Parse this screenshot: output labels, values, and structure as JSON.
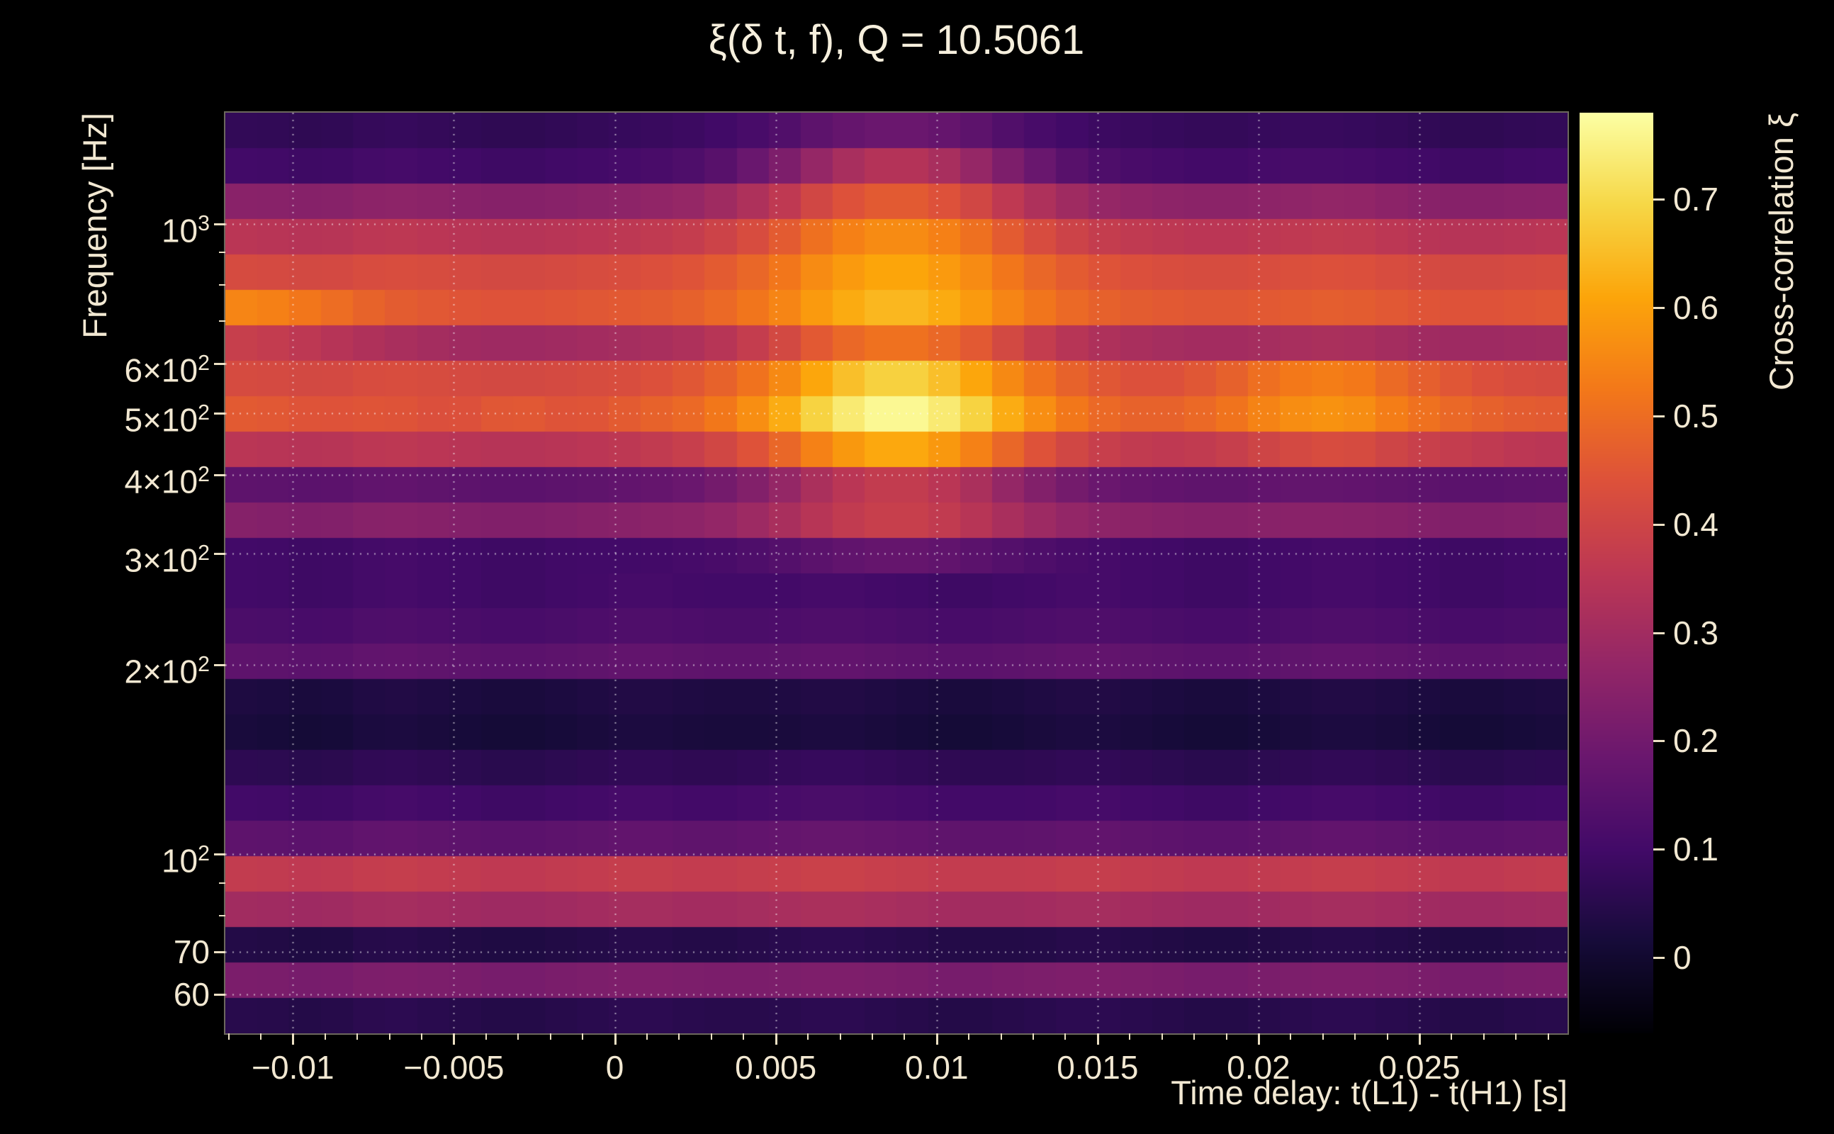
{
  "page": {
    "background": "#000000"
  },
  "style": {
    "text_color": "#f2e8d2",
    "tick_color": "#ece0c4",
    "grid_color": "rgba(255,255,255,0.6)",
    "colormap_low": "#000004",
    "colormap_high": "#fcffa4"
  },
  "chart_data": {
    "type": "heatmap",
    "title": "ξ(δ t, f), Q = 10.5061",
    "xlabel": "Time delay: t(L1) - t(H1) [s]",
    "ylabel": "Frequency [Hz]",
    "colorbar_label": "Cross-correlation ξ",
    "colormap": "inferno",
    "y_scale": "log",
    "grid": "dotted",
    "legend_position": "right-colorbar",
    "x_range": [
      -0.0121,
      0.0296
    ],
    "y_range_hz": [
      52,
      1500
    ],
    "value_range": [
      -0.07,
      0.78
    ],
    "x_ticks": [
      {
        "value": -0.01,
        "label": "−0.01"
      },
      {
        "value": -0.005,
        "label": "−0.005"
      },
      {
        "value": 0,
        "label": "0"
      },
      {
        "value": 0.005,
        "label": "0.005"
      },
      {
        "value": 0.01,
        "label": "0.01"
      },
      {
        "value": 0.015,
        "label": "0.015"
      },
      {
        "value": 0.02,
        "label": "0.02"
      },
      {
        "value": 0.025,
        "label": "0.025"
      }
    ],
    "y_ticks": [
      {
        "value": 1000,
        "base": "10",
        "sup": "3"
      },
      {
        "value": 600,
        "base": "6×10",
        "sup": "2"
      },
      {
        "value": 500,
        "base": "5×10",
        "sup": "2"
      },
      {
        "value": 400,
        "base": "4×10",
        "sup": "2"
      },
      {
        "value": 300,
        "base": "3×10",
        "sup": "2"
      },
      {
        "value": 200,
        "base": "2×10",
        "sup": "2"
      },
      {
        "value": 100,
        "base": "10",
        "sup": "2"
      },
      {
        "value": 70,
        "base": "70",
        "sup": ""
      },
      {
        "value": 60,
        "base": "60",
        "sup": ""
      }
    ],
    "colorbar_ticks": [
      {
        "value": 0,
        "label": "0"
      },
      {
        "value": 0.1,
        "label": "0.1"
      },
      {
        "value": 0.2,
        "label": "0.2"
      },
      {
        "value": 0.3,
        "label": "0.3"
      },
      {
        "value": 0.4,
        "label": "0.4"
      },
      {
        "value": 0.5,
        "label": "0.5"
      },
      {
        "value": 0.6,
        "label": "0.6"
      },
      {
        "value": 0.7,
        "label": "0.7"
      }
    ],
    "time_bins_s": [
      -0.0111,
      -0.0091,
      -0.0071,
      -0.0051,
      -0.0032,
      -0.0012,
      0.0008,
      0.0028,
      0.0048,
      0.0068,
      0.0087,
      0.0107,
      0.0127,
      0.0147,
      0.0167,
      0.0186,
      0.0206,
      0.0226,
      0.0246,
      0.0266,
      0.0286
    ],
    "freq_bins_hz_top_to_bottom": [
      1405.3,
      1234.9,
      1085.2,
      953.6,
      838.0,
      736.4,
      647.1,
      568.6,
      499.7,
      439.1,
      385.9,
      339.1,
      298.0,
      261.9,
      230.1,
      202.2,
      177.7,
      156.2,
      137.2,
      120.6,
      106.0,
      93.1,
      81.8,
      71.9,
      63.2,
      55.5
    ],
    "values_note": "cross-correlation ξ; rows ordered top (high frequency) to bottom (low frequency); columns ordered left (negative delay) to right",
    "values": [
      [
        0.07,
        0.06,
        0.08,
        0.07,
        0.06,
        0.07,
        0.08,
        0.09,
        0.12,
        0.17,
        0.19,
        0.17,
        0.12,
        0.09,
        0.08,
        0.07,
        0.08,
        0.08,
        0.07,
        0.06,
        0.07
      ],
      [
        0.1,
        0.09,
        0.11,
        0.1,
        0.09,
        0.1,
        0.11,
        0.13,
        0.2,
        0.3,
        0.35,
        0.3,
        0.2,
        0.13,
        0.11,
        0.1,
        0.11,
        0.11,
        0.1,
        0.09,
        0.1
      ],
      [
        0.25,
        0.24,
        0.26,
        0.25,
        0.24,
        0.25,
        0.26,
        0.28,
        0.34,
        0.43,
        0.47,
        0.43,
        0.34,
        0.28,
        0.26,
        0.25,
        0.26,
        0.27,
        0.25,
        0.24,
        0.25
      ],
      [
        0.35,
        0.34,
        0.36,
        0.35,
        0.34,
        0.35,
        0.36,
        0.38,
        0.44,
        0.53,
        0.57,
        0.53,
        0.44,
        0.38,
        0.36,
        0.35,
        0.36,
        0.37,
        0.35,
        0.34,
        0.35
      ],
      [
        0.42,
        0.41,
        0.43,
        0.42,
        0.41,
        0.42,
        0.43,
        0.45,
        0.5,
        0.58,
        0.62,
        0.58,
        0.5,
        0.45,
        0.43,
        0.42,
        0.43,
        0.44,
        0.42,
        0.41,
        0.42
      ],
      [
        0.55,
        0.51,
        0.47,
        0.45,
        0.44,
        0.45,
        0.46,
        0.48,
        0.53,
        0.61,
        0.65,
        0.61,
        0.53,
        0.48,
        0.46,
        0.45,
        0.46,
        0.47,
        0.45,
        0.44,
        0.45
      ],
      [
        0.38,
        0.35,
        0.32,
        0.3,
        0.29,
        0.3,
        0.31,
        0.33,
        0.39,
        0.48,
        0.52,
        0.48,
        0.39,
        0.33,
        0.31,
        0.3,
        0.31,
        0.32,
        0.3,
        0.29,
        0.3
      ],
      [
        0.42,
        0.41,
        0.43,
        0.42,
        0.41,
        0.42,
        0.43,
        0.46,
        0.53,
        0.64,
        0.7,
        0.64,
        0.53,
        0.46,
        0.43,
        0.46,
        0.52,
        0.54,
        0.48,
        0.44,
        0.42
      ],
      [
        0.46,
        0.44,
        0.45,
        0.43,
        0.46,
        0.44,
        0.47,
        0.5,
        0.59,
        0.72,
        0.78,
        0.72,
        0.59,
        0.5,
        0.47,
        0.5,
        0.56,
        0.58,
        0.52,
        0.48,
        0.46
      ],
      [
        0.35,
        0.34,
        0.36,
        0.35,
        0.34,
        0.35,
        0.36,
        0.39,
        0.46,
        0.57,
        0.63,
        0.57,
        0.46,
        0.39,
        0.36,
        0.37,
        0.41,
        0.43,
        0.39,
        0.37,
        0.35
      ],
      [
        0.16,
        0.15,
        0.17,
        0.16,
        0.15,
        0.16,
        0.17,
        0.19,
        0.25,
        0.34,
        0.38,
        0.34,
        0.25,
        0.19,
        0.17,
        0.16,
        0.17,
        0.17,
        0.16,
        0.15,
        0.16
      ],
      [
        0.24,
        0.23,
        0.25,
        0.24,
        0.23,
        0.24,
        0.25,
        0.26,
        0.3,
        0.36,
        0.39,
        0.36,
        0.3,
        0.26,
        0.25,
        0.24,
        0.25,
        0.25,
        0.24,
        0.23,
        0.24
      ],
      [
        0.1,
        0.09,
        0.11,
        0.1,
        0.09,
        0.1,
        0.1,
        0.11,
        0.13,
        0.16,
        0.18,
        0.16,
        0.13,
        0.11,
        0.1,
        0.09,
        0.1,
        0.11,
        0.1,
        0.09,
        0.1
      ],
      [
        0.1,
        0.09,
        0.11,
        0.1,
        0.09,
        0.1,
        0.11,
        0.1,
        0.1,
        0.11,
        0.1,
        0.09,
        0.1,
        0.11,
        0.1,
        0.09,
        0.1,
        0.11,
        0.1,
        0.09,
        0.1
      ],
      [
        0.12,
        0.11,
        0.13,
        0.12,
        0.11,
        0.12,
        0.13,
        0.12,
        0.12,
        0.13,
        0.12,
        0.11,
        0.12,
        0.13,
        0.12,
        0.11,
        0.12,
        0.13,
        0.12,
        0.11,
        0.12
      ],
      [
        0.16,
        0.15,
        0.17,
        0.16,
        0.15,
        0.16,
        0.17,
        0.16,
        0.16,
        0.17,
        0.16,
        0.15,
        0.16,
        0.17,
        0.16,
        0.15,
        0.16,
        0.17,
        0.16,
        0.15,
        0.16
      ],
      [
        0.03,
        0.02,
        0.04,
        0.03,
        0.02,
        0.03,
        0.04,
        0.03,
        0.03,
        0.04,
        0.03,
        0.02,
        0.03,
        0.04,
        0.03,
        0.02,
        0.03,
        0.04,
        0.03,
        0.02,
        0.03
      ],
      [
        0.02,
        0.01,
        0.03,
        0.02,
        0.01,
        0.02,
        0.03,
        0.02,
        0.02,
        0.03,
        0.02,
        0.01,
        0.02,
        0.03,
        0.02,
        0.01,
        0.02,
        0.03,
        0.02,
        0.01,
        0.02
      ],
      [
        0.06,
        0.05,
        0.07,
        0.06,
        0.05,
        0.06,
        0.07,
        0.06,
        0.07,
        0.08,
        0.07,
        0.06,
        0.06,
        0.07,
        0.06,
        0.05,
        0.06,
        0.07,
        0.06,
        0.05,
        0.06
      ],
      [
        0.1,
        0.09,
        0.11,
        0.1,
        0.09,
        0.1,
        0.11,
        0.1,
        0.11,
        0.12,
        0.11,
        0.1,
        0.1,
        0.11,
        0.1,
        0.09,
        0.1,
        0.11,
        0.1,
        0.09,
        0.1
      ],
      [
        0.16,
        0.15,
        0.17,
        0.16,
        0.15,
        0.16,
        0.17,
        0.16,
        0.17,
        0.18,
        0.17,
        0.16,
        0.16,
        0.17,
        0.16,
        0.15,
        0.16,
        0.17,
        0.16,
        0.15,
        0.16
      ],
      [
        0.37,
        0.36,
        0.38,
        0.37,
        0.36,
        0.37,
        0.38,
        0.37,
        0.38,
        0.39,
        0.38,
        0.37,
        0.37,
        0.38,
        0.37,
        0.36,
        0.37,
        0.38,
        0.37,
        0.36,
        0.37
      ],
      [
        0.3,
        0.29,
        0.31,
        0.3,
        0.29,
        0.3,
        0.31,
        0.3,
        0.31,
        0.32,
        0.31,
        0.3,
        0.3,
        0.31,
        0.3,
        0.29,
        0.3,
        0.31,
        0.3,
        0.29,
        0.3
      ],
      [
        0.04,
        0.03,
        0.05,
        0.04,
        0.03,
        0.04,
        0.05,
        0.04,
        0.05,
        0.06,
        0.05,
        0.04,
        0.04,
        0.05,
        0.04,
        0.03,
        0.04,
        0.05,
        0.04,
        0.03,
        0.04
      ],
      [
        0.22,
        0.21,
        0.23,
        0.22,
        0.21,
        0.22,
        0.23,
        0.22,
        0.22,
        0.23,
        0.22,
        0.21,
        0.22,
        0.23,
        0.22,
        0.21,
        0.22,
        0.23,
        0.22,
        0.21,
        0.22
      ],
      [
        0.05,
        0.04,
        0.06,
        0.05,
        0.04,
        0.05,
        0.06,
        0.05,
        0.05,
        0.06,
        0.05,
        0.04,
        0.05,
        0.06,
        0.05,
        0.04,
        0.05,
        0.06,
        0.05,
        0.04,
        0.05
      ]
    ]
  }
}
